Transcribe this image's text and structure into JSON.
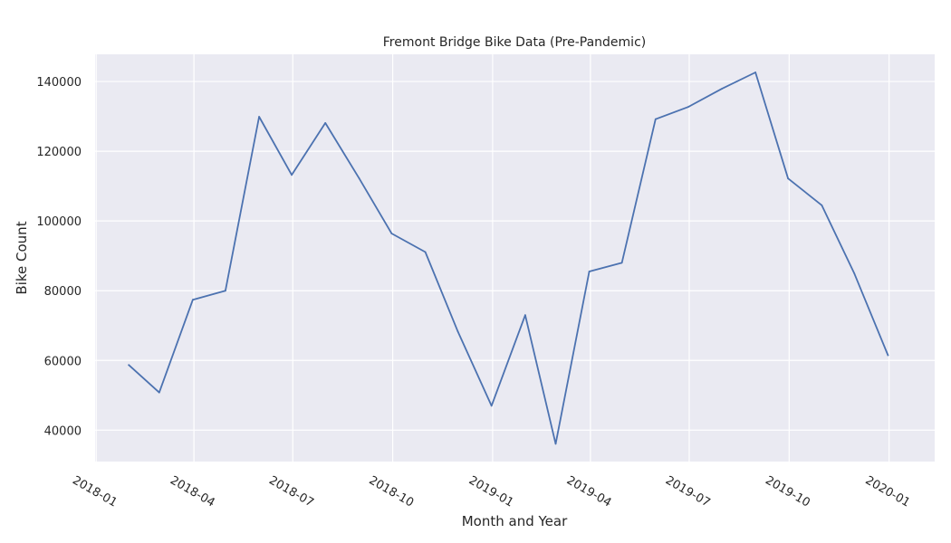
{
  "chart_data": {
    "type": "line",
    "title": "Fremont Bridge Bike Data (Pre-Pandemic)",
    "xlabel": "Month and Year",
    "ylabel": "Bike Count",
    "grid": true,
    "legend": "none",
    "x_ticks": [
      "2018-01",
      "2018-04",
      "2018-07",
      "2018-10",
      "2019-01",
      "2019-04",
      "2019-07",
      "2019-10",
      "2020-01"
    ],
    "y_ticks": [
      40000,
      60000,
      80000,
      100000,
      120000,
      140000
    ],
    "xlim": [
      "2017-12-31",
      "2020-02-12"
    ],
    "ylim": [
      31000,
      147800
    ],
    "series": [
      {
        "color": "#4c72b0",
        "x": [
          "2018-01-31",
          "2018-02-28",
          "2018-03-31",
          "2018-04-30",
          "2018-05-31",
          "2018-06-30",
          "2018-07-31",
          "2018-08-31",
          "2018-09-30",
          "2018-10-31",
          "2018-11-30",
          "2018-12-31",
          "2019-01-31",
          "2019-02-28",
          "2019-03-31",
          "2019-04-30",
          "2019-05-31",
          "2019-06-30",
          "2019-07-31",
          "2019-08-31",
          "2019-09-30",
          "2019-10-31",
          "2019-11-30",
          "2019-12-31"
        ],
        "values": [
          58700,
          50800,
          77400,
          80000,
          129900,
          113200,
          128100,
          112300,
          96400,
          91100,
          68300,
          47000,
          73000,
          36100,
          85500,
          88000,
          129200,
          132700,
          137900,
          142600,
          112200,
          104500,
          84900,
          61500
        ]
      }
    ]
  }
}
